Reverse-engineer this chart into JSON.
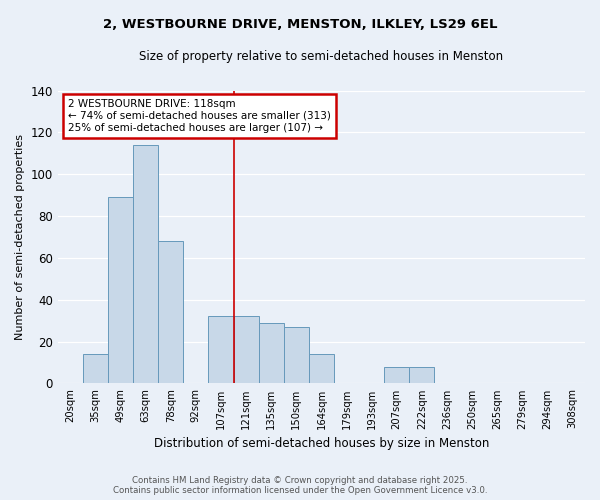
{
  "title": "2, WESTBOURNE DRIVE, MENSTON, ILKLEY, LS29 6EL",
  "subtitle": "Size of property relative to semi-detached houses in Menston",
  "xlabel": "Distribution of semi-detached houses by size in Menston",
  "ylabel": "Number of semi-detached properties",
  "bins": [
    "20sqm",
    "35sqm",
    "49sqm",
    "63sqm",
    "78sqm",
    "92sqm",
    "107sqm",
    "121sqm",
    "135sqm",
    "150sqm",
    "164sqm",
    "179sqm",
    "193sqm",
    "207sqm",
    "222sqm",
    "236sqm",
    "250sqm",
    "265sqm",
    "279sqm",
    "294sqm",
    "308sqm"
  ],
  "values": [
    0,
    14,
    89,
    114,
    68,
    0,
    32,
    32,
    29,
    27,
    14,
    0,
    0,
    8,
    8,
    0,
    0,
    0,
    0,
    0,
    0
  ],
  "bar_color": "#c8d8e8",
  "bar_edge_color": "#6699bb",
  "annotation_title": "2 WESTBOURNE DRIVE: 118sqm",
  "annotation_line1": "← 74% of semi-detached houses are smaller (313)",
  "annotation_line2": "25% of semi-detached houses are larger (107) →",
  "annotation_box_color": "#ffffff",
  "annotation_box_edge": "#cc0000",
  "vline_x": 6.5,
  "vline_color": "#cc0000",
  "ylim": [
    0,
    140
  ],
  "yticks": [
    0,
    20,
    40,
    60,
    80,
    100,
    120,
    140
  ],
  "bg_color": "#eaf0f8",
  "grid_color": "#ffffff",
  "footer_line1": "Contains HM Land Registry data © Crown copyright and database right 2025.",
  "footer_line2": "Contains public sector information licensed under the Open Government Licence v3.0."
}
